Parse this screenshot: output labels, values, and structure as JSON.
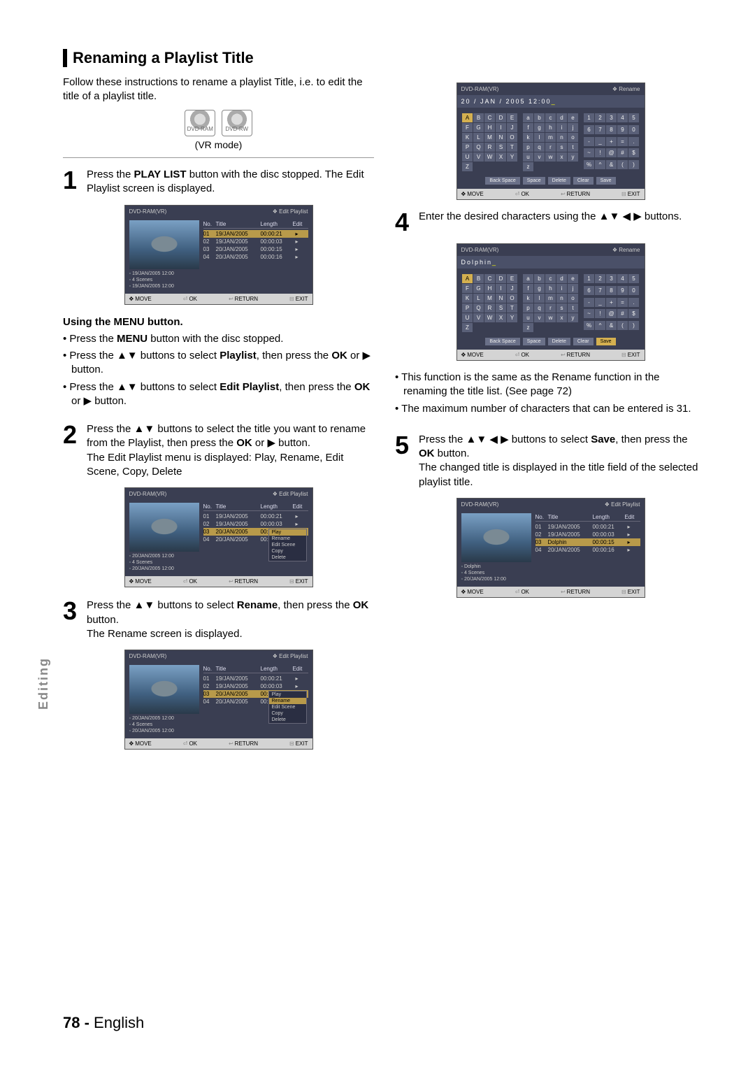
{
  "page": {
    "title": "Renaming a Playlist Title",
    "intro": "Follow these instructions to rename a playlist Title, i.e. to edit the title of a playlist title.",
    "discs": [
      "DVD-RAM",
      "DVD-RW"
    ],
    "vr": "(VR mode)",
    "sideTab": "Editing",
    "footerNum": "78 -",
    "footerLang": "English"
  },
  "steps": {
    "s1": {
      "num": "1",
      "a": "Press the ",
      "b": "PLAY LIST",
      "c": " button with the disc stopped. The Edit Playlist screen is displayed."
    },
    "menuHead": "Using the MENU button.",
    "m1a": "Press the ",
    "m1b": "MENU",
    "m1c": " button with the disc stopped.",
    "m2a": "Press the ▲▼ buttons to select ",
    "m2b": "Playlist",
    "m2c": ", then press the ",
    "m2d": "OK",
    "m2e": " or ▶ button.",
    "m3a": "Press the ▲▼ buttons to select ",
    "m3b": "Edit Playlist",
    "m3c": ", then press the ",
    "m3d": "OK",
    "m3e": " or ▶ button.",
    "s2": {
      "num": "2",
      "a": "Press the ▲▼ buttons to select the title you want to rename from the Playlist, then press the ",
      "b": "OK",
      "c": " or ▶ button.",
      "d": "The Edit Playlist menu is displayed: Play, Rename, Edit Scene, Copy, Delete"
    },
    "s3": {
      "num": "3",
      "a": "Press the  ▲▼ buttons to select ",
      "b": "Rename",
      "c": ", then press the ",
      "d": "OK",
      "e": " button.",
      "f": "The Rename screen is displayed."
    },
    "s4": {
      "num": "4",
      "a": "Enter the desired characters using the ▲▼ ◀ ▶ buttons."
    },
    "note1": "This function is the same as the Rename function in the renaming the title list. (See page 72)",
    "note2": "The maximum number of characters that can be entered is 31.",
    "s5": {
      "num": "5",
      "a": "Press the ▲▼ ◀ ▶ buttons to select ",
      "b": "Save",
      "c": ", then press the ",
      "d": "OK",
      "e": " button.",
      "f": "The changed title is displayed in the title field of the selected playlist title."
    }
  },
  "shot": {
    "hdrL": "DVD-RAM(VR)",
    "editPlaylist": "Edit Playlist",
    "rename": "Rename",
    "colNo": "No.",
    "colTitle": "Title",
    "colLen": "Length",
    "colEdit": "Edit",
    "rows": [
      {
        "n": "01",
        "t": "19/JAN/2005",
        "l": "00:00:21"
      },
      {
        "n": "02",
        "t": "19/JAN/2005",
        "l": "00:00:03"
      },
      {
        "n": "03",
        "t": "20/JAN/2005",
        "l": "00:00:15"
      },
      {
        "n": "04",
        "t": "20/JAN/2005",
        "l": "00:00:16"
      }
    ],
    "rowsDolphin": [
      {
        "n": "01",
        "t": "19/JAN/2005",
        "l": "00:00:21"
      },
      {
        "n": "02",
        "t": "19/JAN/2005",
        "l": "00:00:03"
      },
      {
        "n": "03",
        "t": "Dolphin",
        "l": "00:00:15"
      },
      {
        "n": "04",
        "t": "20/JAN/2005",
        "l": "00:00:16"
      }
    ],
    "meta1a": "19/JAN/2005 12:00",
    "meta1b": "4 Scenes",
    "meta1c": "19/JAN/2005 12:00",
    "meta2a": "20/JAN/2005 12:00",
    "metaD": "Dolphin",
    "menu": [
      "Play",
      "Rename",
      "Edit Scene",
      "Copy",
      "Delete"
    ],
    "fMove": "MOVE",
    "fOk": "OK",
    "fRet": "RETURN",
    "fExit": "EXIT",
    "kbdTitle1": "20 / JAN / 2005 12:00",
    "kbdTitle2": "Dolphin",
    "upper": [
      "A",
      "B",
      "C",
      "D",
      "E",
      "F",
      "G",
      "H",
      "I",
      "J",
      "K",
      "L",
      "M",
      "N",
      "O",
      "P",
      "Q",
      "R",
      "S",
      "T",
      "U",
      "V",
      "W",
      "X",
      "Y",
      "Z"
    ],
    "lower": [
      "a",
      "b",
      "c",
      "d",
      "e",
      "f",
      "g",
      "h",
      "i",
      "j",
      "k",
      "l",
      "m",
      "n",
      "o",
      "p",
      "q",
      "r",
      "s",
      "t",
      "u",
      "v",
      "w",
      "x",
      "y",
      "z"
    ],
    "nums": [
      "1",
      "2",
      "3",
      "4",
      "5",
      "6",
      "7",
      "8",
      "9",
      "0",
      "-",
      "_",
      "+",
      "=",
      ".",
      "~",
      "!",
      "@",
      "#",
      "$",
      "%",
      "^",
      "&",
      "(",
      ")"
    ],
    "kbtns": [
      "Back Space",
      "Space",
      "Delete",
      "Clear",
      "Save"
    ]
  }
}
